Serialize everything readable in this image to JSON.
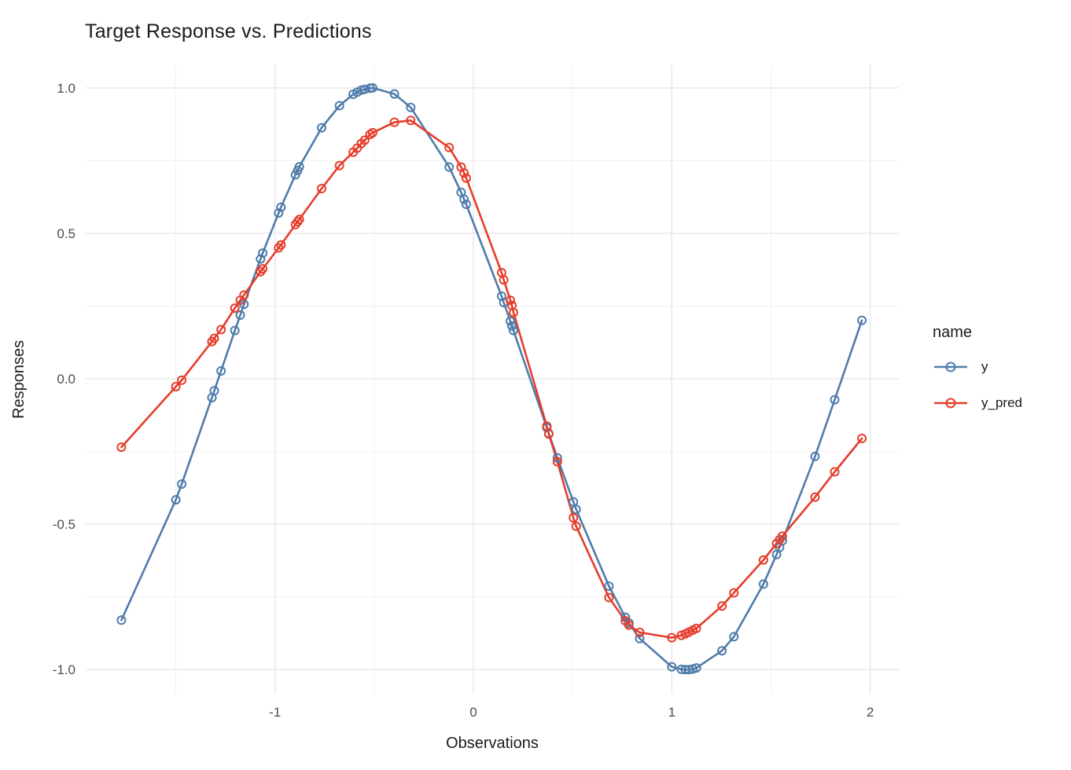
{
  "title": "Target Response vs. Predictions",
  "axes": {
    "x_title": "Observations",
    "y_title": "Responses",
    "x_tick_labels": [
      "-1",
      "0",
      "1",
      "2"
    ],
    "y_tick_labels": [
      "1.0",
      "0.5",
      "0.0",
      "-0.5",
      "-1.0"
    ]
  },
  "legend": {
    "title": "name",
    "entries": [
      {
        "label": "y",
        "color": "#4f7cab"
      },
      {
        "label": "y_pred",
        "color": "#e63d2b"
      }
    ]
  },
  "colors": {
    "background": "#ffffff",
    "grid_major": "#e7e7e7",
    "grid_minor": "#f2f2f2",
    "tick_label": "#4d4d4d",
    "title_text": "#1a1a1a",
    "series_y": "#4f7cab",
    "series_y_pred": "#e63d2b"
  },
  "chart_data": {
    "type": "line",
    "title": "Target Response vs. Predictions",
    "xlabel": "Observations",
    "ylabel": "Responses",
    "legend_title": "name",
    "legend_position": "right",
    "marker": "open-circle",
    "grid": true,
    "xlim": [
      -1.954,
      2.144
    ],
    "ylim": [
      -1.083,
      1.078
    ],
    "x_ticks": [
      -1,
      0,
      1,
      2
    ],
    "y_ticks": [
      1.0,
      0.5,
      0.0,
      -0.5,
      -1.0
    ],
    "x_minor_ticks": [
      -1.5,
      -0.5,
      0.5,
      1.5
    ],
    "y_minor_ticks": [
      0.75,
      0.25,
      -0.25,
      -0.75
    ],
    "x": [
      -1.774,
      -1.5,
      -1.47,
      -1.318,
      -1.306,
      -1.272,
      -1.202,
      -1.175,
      -1.156,
      -1.073,
      -1.062,
      -0.982,
      -0.97,
      -0.897,
      -0.886,
      -0.877,
      -0.765,
      -0.675,
      -0.606,
      -0.586,
      -0.565,
      -0.548,
      -0.521,
      -0.508,
      -0.398,
      -0.316,
      -0.122,
      -0.062,
      -0.047,
      -0.036,
      0.142,
      0.153,
      0.186,
      0.194,
      0.202,
      0.37,
      0.38,
      0.423,
      0.504,
      0.518,
      0.683,
      0.766,
      0.784,
      0.838,
      1.0,
      1.048,
      1.068,
      1.086,
      1.106,
      1.124,
      1.253,
      1.313,
      1.462,
      1.528,
      1.543,
      1.557,
      1.722,
      1.821,
      1.958
    ],
    "series": [
      {
        "name": "y",
        "color": "#4f7cab",
        "values": [
          -0.83,
          -0.416,
          -0.362,
          -0.065,
          -0.041,
          0.027,
          0.166,
          0.219,
          0.256,
          0.412,
          0.432,
          0.57,
          0.59,
          0.701,
          0.716,
          0.729,
          0.863,
          0.939,
          0.978,
          0.985,
          0.992,
          0.995,
          0.999,
          1.0,
          0.979,
          0.933,
          0.728,
          0.641,
          0.617,
          0.6,
          0.284,
          0.262,
          0.198,
          0.182,
          0.166,
          -0.168,
          -0.188,
          -0.272,
          -0.423,
          -0.449,
          -0.713,
          -0.82,
          -0.84,
          -0.893,
          -0.99,
          -0.999,
          -1.0,
          -1.0,
          -0.998,
          -0.994,
          -0.935,
          -0.887,
          -0.706,
          -0.604,
          -0.58,
          -0.557,
          -0.267,
          -0.072,
          0.201
        ]
      },
      {
        "name": "y_pred",
        "color": "#e63d2b",
        "values": [
          -0.235,
          -0.027,
          -0.005,
          0.128,
          0.139,
          0.169,
          0.243,
          0.27,
          0.288,
          0.368,
          0.378,
          0.45,
          0.46,
          0.53,
          0.54,
          0.548,
          0.654,
          0.733,
          0.779,
          0.793,
          0.809,
          0.82,
          0.84,
          0.846,
          0.882,
          0.888,
          0.795,
          0.728,
          0.707,
          0.69,
          0.365,
          0.34,
          0.27,
          0.252,
          0.228,
          -0.163,
          -0.19,
          -0.285,
          -0.478,
          -0.507,
          -0.752,
          -0.832,
          -0.847,
          -0.872,
          -0.89,
          -0.882,
          -0.877,
          -0.871,
          -0.864,
          -0.858,
          -0.781,
          -0.736,
          -0.623,
          -0.566,
          -0.553,
          -0.541,
          -0.407,
          -0.32,
          -0.205
        ]
      }
    ]
  }
}
